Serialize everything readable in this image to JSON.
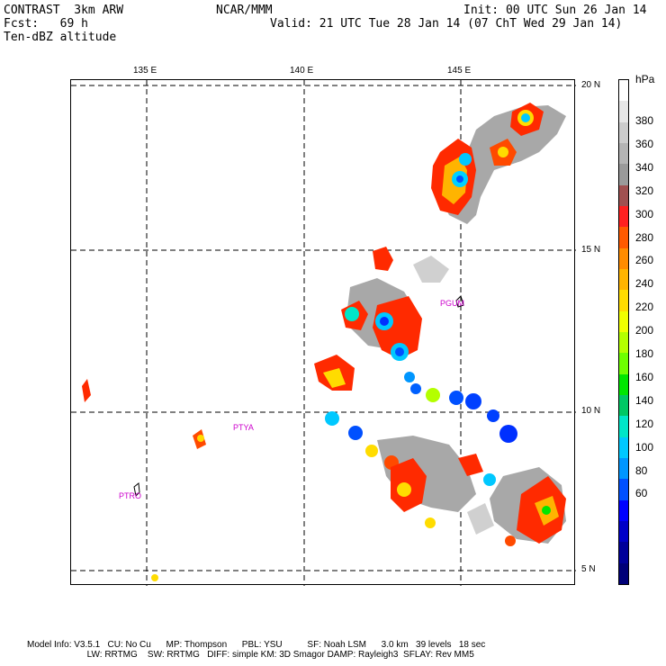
{
  "header": {
    "line1_left": "CONTRAST  3km ARW",
    "line1_center": "NCAR/MMM",
    "line1_right": "Init: 00 UTC Sun 26 Jan 14",
    "line2_left": "Fcst:   69 h",
    "line2_right": "Valid: 21 UTC Tue 28 Jan 14 (07 ChT Wed 29 Jan 14)",
    "line3_left": "Ten-dBZ altitude"
  },
  "axes": {
    "lon_labels": [
      "135 E",
      "140 E",
      "145 E"
    ],
    "lat_labels": [
      "20 N",
      "15 N",
      "10 N",
      "5 N"
    ]
  },
  "stations": [
    "PGUM",
    "PTYA",
    "PTRO"
  ],
  "colorbar": {
    "unit": "hPa",
    "labels": [
      "380",
      "360",
      "340",
      "320",
      "300",
      "280",
      "260",
      "240",
      "220",
      "200",
      "180",
      "160",
      "140",
      "120",
      "100",
      "80",
      "60"
    ],
    "colors": [
      "#ffffff",
      "#e6e6e6",
      "#cccccc",
      "#b4b4b4",
      "#9a9a9a",
      "#a05050",
      "#ff2020",
      "#ff5a00",
      "#ff8c00",
      "#ffb400",
      "#ffdc00",
      "#f0ff00",
      "#b4ff00",
      "#6eff00",
      "#00e600",
      "#00c864",
      "#00e6c8",
      "#00c8ff",
      "#0096ff",
      "#0050ff",
      "#0000ff",
      "#0000c8",
      "#00009a",
      "#000078"
    ]
  },
  "footer": {
    "line1": "Model Info: V3.5.1   CU: No Cu      MP: Thompson      PBL: YSU          SF: Noah LSM      3.0 km   39 levels   18 sec",
    "line2": "                        LW: RRTMG    SW: RRTMG   DIFF: simple KM: 3D Smagor DAMP: Rayleigh3  SFLAY: Rev MM5"
  }
}
